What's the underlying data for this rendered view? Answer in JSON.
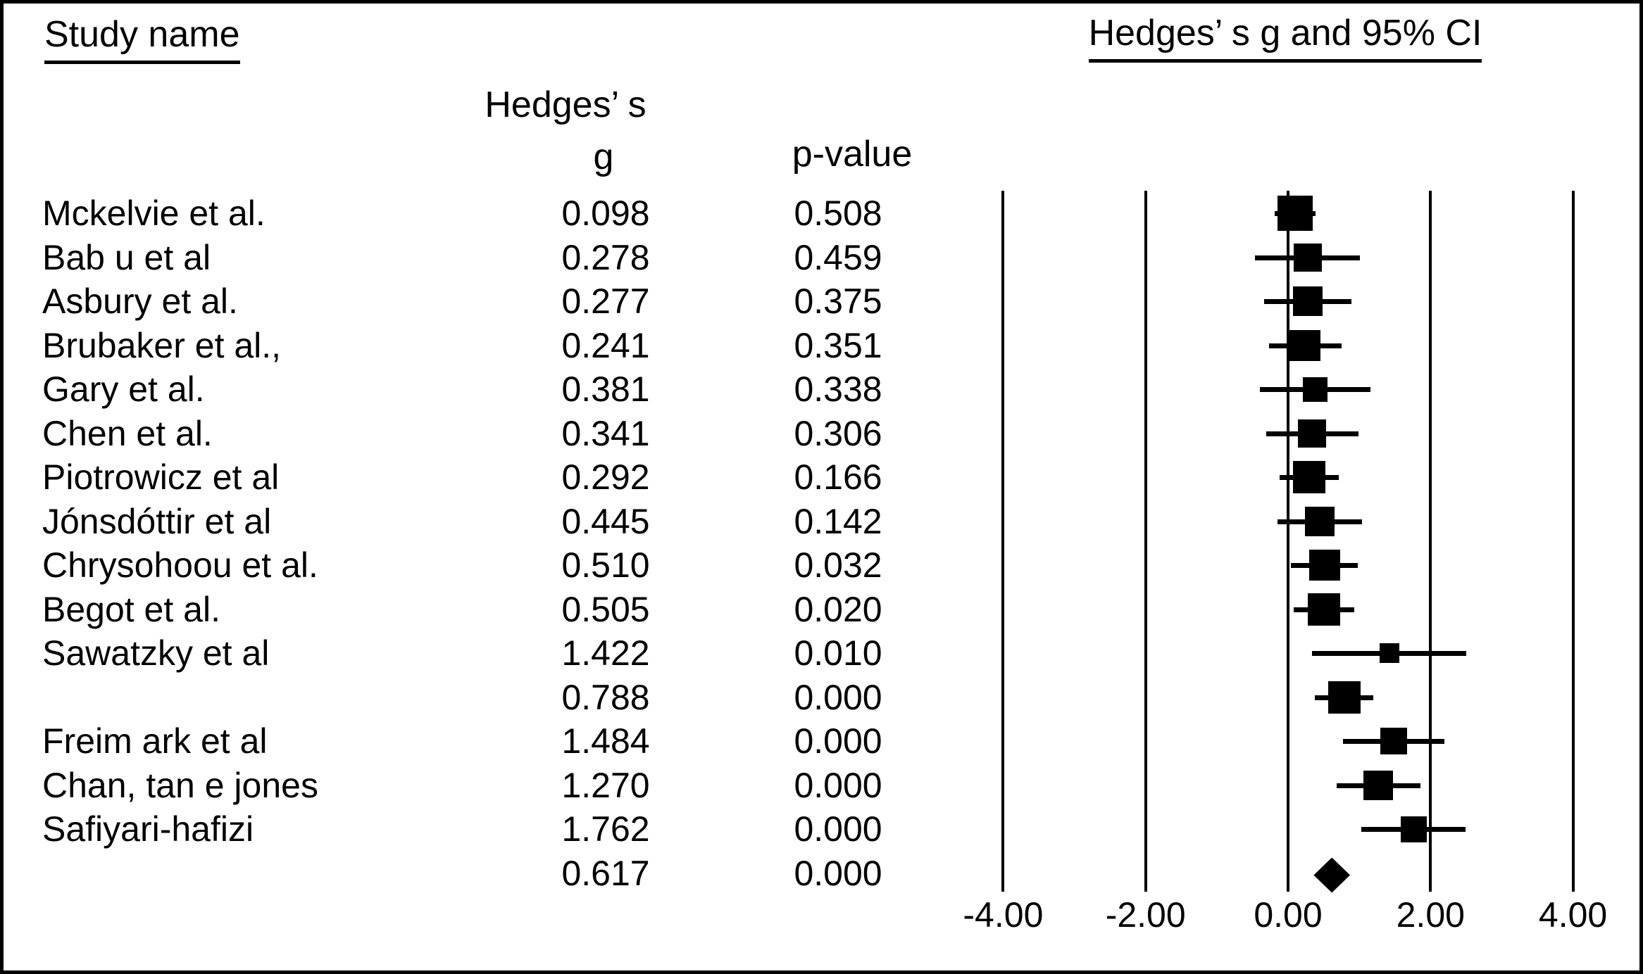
{
  "header": {
    "study_col": "Study name",
    "plot_title": "Hedges’ s g and 95% CI",
    "g_col_line1": "Hedges’ s",
    "g_col_line2": "g",
    "p_col": "p-value"
  },
  "colors": {
    "foreground": "#000000",
    "background": "#ffffff"
  },
  "chart_data": {
    "type": "forest",
    "title": "Hedges’ s g and 95% CI",
    "legend": "none",
    "grid": "vertical-reference-lines",
    "x_ticks": [
      {
        "label": "-4.00",
        "value": -4
      },
      {
        "label": "-2.00",
        "value": -2
      },
      {
        "label": "0.00",
        "value": 0
      },
      {
        "label": "2.00",
        "value": 2
      },
      {
        "label": "4.00",
        "value": 4
      }
    ],
    "xlim": [
      -4,
      4
    ],
    "studies": [
      {
        "name": "Mckelvie et al.",
        "g_label": "0.098",
        "p_label": "0.508",
        "g": 0.098,
        "ci_low": -0.19,
        "ci_high": 0.39,
        "marker": "square",
        "size": 50
      },
      {
        "name": "Bab u et al",
        "g_label": "0.278",
        "p_label": "0.459",
        "g": 0.278,
        "ci_low": -0.46,
        "ci_high": 1.01,
        "marker": "square",
        "size": 40
      },
      {
        "name": "Asbury et al.",
        "g_label": "0.277",
        "p_label": "0.375",
        "g": 0.277,
        "ci_low": -0.34,
        "ci_high": 0.89,
        "marker": "square",
        "size": 42
      },
      {
        "name": "Brubaker et al.,",
        "g_label": "0.241",
        "p_label": "0.351",
        "g": 0.241,
        "ci_low": -0.27,
        "ci_high": 0.75,
        "marker": "square",
        "size": 44
      },
      {
        "name": "Gary et al.",
        "g_label": "0.381",
        "p_label": "0.338",
        "g": 0.381,
        "ci_low": -0.4,
        "ci_high": 1.16,
        "marker": "square",
        "size": 35
      },
      {
        "name": "Chen et al.",
        "g_label": "0.341",
        "p_label": "0.306",
        "g": 0.341,
        "ci_low": -0.31,
        "ci_high": 0.99,
        "marker": "square",
        "size": 40
      },
      {
        "name": "Piotrowicz et al",
        "g_label": "0.292",
        "p_label": "0.166",
        "g": 0.292,
        "ci_low": -0.12,
        "ci_high": 0.71,
        "marker": "square",
        "size": 46
      },
      {
        "name": "Jónsdóttir et al",
        "g_label": "0.445",
        "p_label": "0.142",
        "g": 0.445,
        "ci_low": -0.15,
        "ci_high": 1.04,
        "marker": "square",
        "size": 42
      },
      {
        "name": "Chrysohoou et al.",
        "g_label": "0.510",
        "p_label": "0.032",
        "g": 0.51,
        "ci_low": 0.04,
        "ci_high": 0.98,
        "marker": "square",
        "size": 44
      },
      {
        "name": "Begot et al.",
        "g_label": "0.505",
        "p_label": "0.020",
        "g": 0.505,
        "ci_low": 0.08,
        "ci_high": 0.93,
        "marker": "square",
        "size": 46
      },
      {
        "name": "Sawatzky et al",
        "g_label": "1.422",
        "p_label": "0.010",
        "g": 1.422,
        "ci_low": 0.34,
        "ci_high": 2.5,
        "marker": "square",
        "size": 28
      },
      {
        "name": "",
        "g_label": "0.788",
        "p_label": "0.000",
        "g": 0.788,
        "ci_low": 0.38,
        "ci_high": 1.2,
        "marker": "square",
        "size": 46
      },
      {
        "name": "Freim ark et al",
        "g_label": "1.484",
        "p_label": "0.000",
        "g": 1.484,
        "ci_low": 0.77,
        "ci_high": 2.19,
        "marker": "square",
        "size": 38
      },
      {
        "name": "Chan, tan e jones",
        "g_label": "1.270",
        "p_label": "0.000",
        "g": 1.27,
        "ci_low": 0.68,
        "ci_high": 1.86,
        "marker": "square",
        "size": 42
      },
      {
        "name": "Safiyari-hafizi",
        "g_label": "1.762",
        "p_label": "0.000",
        "g": 1.762,
        "ci_low": 1.03,
        "ci_high": 2.49,
        "marker": "square",
        "size": 37
      },
      {
        "name": "",
        "g_label": "0.617",
        "p_label": "0.000",
        "g": 0.617,
        "ci_low": 0.36,
        "ci_high": 0.87,
        "marker": "diamond",
        "size": 50
      }
    ]
  }
}
